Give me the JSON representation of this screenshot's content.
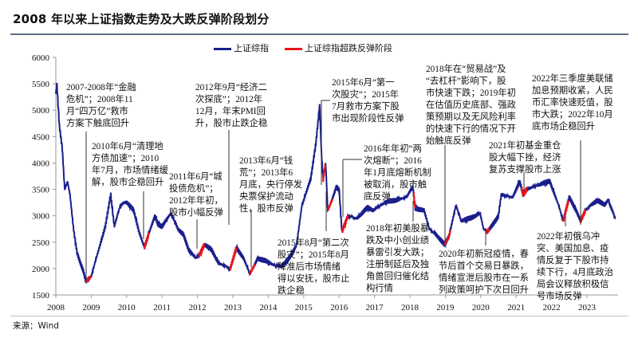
{
  "title": "2008 年以来上证指数走势及大跌反弹阶段划分",
  "source": "来源：Wind",
  "colors": {
    "main_series": "#1a1f8c",
    "rebound_series": "#e8141b",
    "rule": "#5a6f86"
  },
  "chart_data": {
    "type": "line",
    "title": "",
    "xlabel": "",
    "ylabel": "",
    "xlim": [
      2008,
      2023.8
    ],
    "ylim": [
      1500,
      6000
    ],
    "yticks": [
      1500,
      2000,
      2500,
      3000,
      3500,
      4000,
      4500,
      5000,
      5500,
      6000
    ],
    "xticks": [
      "2008",
      "2009",
      "2010",
      "2011",
      "2012",
      "2013",
      "2014",
      "2015",
      "2016",
      "2017",
      "2018",
      "2019",
      "2020",
      "2021",
      "2022",
      "2023"
    ],
    "legend_position": "top",
    "grid": false,
    "series": [
      {
        "name": "上证综指",
        "x": [
          2008.0,
          2008.03,
          2008.1,
          2008.18,
          2008.25,
          2008.33,
          2008.4,
          2008.5,
          2008.6,
          2008.7,
          2008.78,
          2008.85,
          2008.92,
          2009.0,
          2009.1,
          2009.25,
          2009.4,
          2009.55,
          2009.65,
          2009.8,
          2009.92,
          2010.0,
          2010.2,
          2010.35,
          2010.5,
          2010.62,
          2010.8,
          2010.88,
          2011.0,
          2011.25,
          2011.45,
          2011.6,
          2011.75,
          2011.95,
          2012.05,
          2012.2,
          2012.4,
          2012.6,
          2012.8,
          2012.92,
          2013.1,
          2013.3,
          2013.48,
          2013.6,
          2013.7,
          2013.9,
          2014.2,
          2014.4,
          2014.6,
          2014.8,
          2014.95,
          2015.2,
          2015.35,
          2015.45,
          2015.5,
          2015.55,
          2015.62,
          2015.68,
          2015.8,
          2015.92,
          2016.0,
          2016.08,
          2016.25,
          2016.5,
          2016.8,
          2016.95,
          2017.3,
          2017.6,
          2017.9,
          2018.08,
          2018.15,
          2018.4,
          2018.55,
          2018.8,
          2018.98,
          2019.1,
          2019.3,
          2019.45,
          2019.7,
          2019.98,
          2020.08,
          2020.2,
          2020.4,
          2020.5,
          2020.58,
          2020.9,
          2021.1,
          2021.2,
          2021.3,
          2021.5,
          2021.7,
          2021.95,
          2022.2,
          2022.33,
          2022.5,
          2022.7,
          2022.82,
          2022.95,
          2023.1,
          2023.3,
          2023.5,
          2023.6,
          2023.8
        ],
        "values": [
          5300,
          5500,
          4700,
          4300,
          3500,
          3650,
          3400,
          2750,
          2300,
          2100,
          1950,
          1750,
          1800,
          1850,
          2100,
          2450,
          2800,
          3400,
          2800,
          3150,
          3250,
          3250,
          3100,
          2700,
          2400,
          2650,
          3000,
          2850,
          2800,
          3050,
          2750,
          2650,
          2350,
          2200,
          2250,
          2450,
          2350,
          2100,
          2050,
          1980,
          2400,
          2200,
          1900,
          2050,
          2200,
          2150,
          2050,
          2050,
          2200,
          2450,
          3200,
          3700,
          4400,
          5100,
          4200,
          3700,
          4000,
          3100,
          3300,
          3550,
          3500,
          2700,
          3000,
          2950,
          3150,
          3100,
          3250,
          3300,
          3350,
          3550,
          3150,
          3100,
          2750,
          2600,
          2450,
          2600,
          3200,
          2900,
          2950,
          3050,
          2750,
          2700,
          2900,
          3000,
          3400,
          3350,
          3650,
          3400,
          3500,
          3550,
          3600,
          3650,
          3200,
          2900,
          3350,
          3100,
          2900,
          3100,
          3200,
          3300,
          3200,
          3300,
          2950
        ]
      },
      {
        "name": "上证综指超跌反弹阶段",
        "ranges": [
          [
            2008.85,
            2009.0
          ],
          [
            2010.5,
            2010.62
          ],
          [
            2012.05,
            2012.2
          ],
          [
            2012.92,
            2013.1
          ],
          [
            2013.48,
            2013.62
          ],
          [
            2015.55,
            2015.62
          ],
          [
            2015.68,
            2015.8
          ],
          [
            2016.08,
            2016.25
          ],
          [
            2018.1,
            2018.15
          ],
          [
            2018.98,
            2019.15
          ],
          [
            2020.15,
            2020.25
          ],
          [
            2021.15,
            2021.3
          ],
          [
            2022.33,
            2022.48
          ],
          [
            2022.82,
            2022.95
          ]
        ]
      }
    ],
    "annotations": [
      "2007-2008年“金融\n危机”；2008年11\n月“四万亿”救市\n方案下触底回升",
      "2010年6月“清理地\n方债加速”；2010\n年7月，市场情绪缓\n解，股市企稳回升",
      "2011年6月“城\n投债危机”；\n2012年年初，\n股市小幅反弹",
      "2012年9月“经济二\n次探底”；2012年\n12月，年末PMI回\n升，股市止跌企稳",
      "2013年6月“钱\n荒”；2013年6\n月底，央行停发\n央票保护流动\n性，股市反弹",
      "2015年6月“第一\n次股灾”；2015年\n7月救市方案下股\n市出现阶段性反弹",
      "2016年年初“两\n次熔断”；2016\n年1月底熔断机制\n被取消，股市触\n底反弹",
      "2018年在“贸易战”及\n“去杠杆”影响下，股\n市快速下跌；2019年初\n在估值历史底部、强政\n策预期以及无风险利率\n的快速下行的情况下开\n始触底反弹",
      "2021年初基金重仓\n股大幅下挫，经济\n复苏支撑股市上涨",
      "2022年三季度美联储\n加息预期收紧，人民\n币汇率快速贬值，股\n市大跌；2022年10月\n底市场企稳回升",
      "2015年8月“第二次\n股灾”；2015年8月\n降准后市场情绪\n得以安抚，股市止\n跌企稳",
      "2018年初美股暴\n跌及中小创业绩\n暴雷引发大跌；\n注册制延后及独\n角兽回归催化结\n构行情",
      "2020年初新冠疫情，春\n节后首个交易日暴跌，\n情绪宣泄后股市在一系\n列政策呵护下次日回升",
      "2022年初俄乌冲\n突、美国加息、疫\n情反复于下股市持\n续下行，4月底政治\n局会议释放积极信\n号市场反弹"
    ]
  }
}
